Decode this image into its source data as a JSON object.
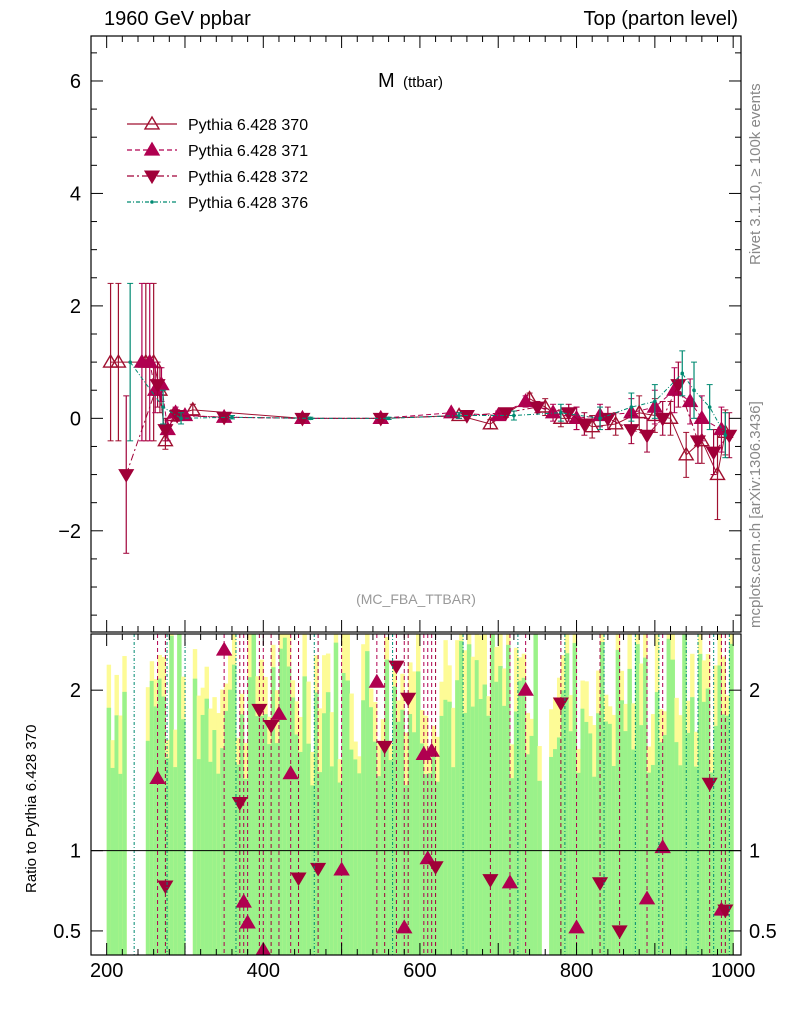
{
  "header": {
    "left": "1960 GeV ppbar",
    "right": "Top (parton level)"
  },
  "side_labels": {
    "rivet": "Rivet 3.1.10, ≥ 100k events",
    "mcplots": "mcplots.cern.ch [arXiv:1306.3436]"
  },
  "plot_title_main": "M",
  "plot_title_sub": "(ttbar)",
  "analysis_tag": "(MC_FBA_TTBAR)",
  "ratio_ylabel": "Ratio to Pythia 6.428 370",
  "colors": {
    "s370": "#a01030",
    "s371": "#b00050",
    "s372": "#a00038",
    "s376": "#008a72",
    "band_green": "#9af28a",
    "band_yellow": "#fdfb96",
    "gray_text": "#999999"
  },
  "legend": [
    {
      "label": "Pythia 6.428 370",
      "marker": "triangle-open",
      "line": "solid"
    },
    {
      "label": "Pythia 6.428 371",
      "marker": "triangle-up",
      "line": "dashed"
    },
    {
      "label": "Pythia 6.428 372",
      "marker": "triangle-down",
      "line": "dashdot"
    },
    {
      "label": "Pythia 6.428 376",
      "marker": "dot",
      "line": "dashdot-fine"
    }
  ],
  "chart_data": [
    {
      "type": "scatter",
      "title": "M (ttbar)",
      "xlim": [
        180,
        1010
      ],
      "ylim": [
        -3.8,
        6.8
      ],
      "yticks": [
        -2,
        0,
        2,
        4,
        6
      ],
      "ytick_labels": [
        "−2",
        "0",
        "2",
        "4",
        "6"
      ],
      "xticks": [
        200,
        400,
        600,
        800,
        1000
      ],
      "xtick_labels": [
        "200",
        "400",
        "600",
        "800",
        "1000"
      ],
      "grid": false,
      "legend_position": "top-left",
      "series": [
        {
          "name": "Pythia 6.428 370",
          "x": [
            205,
            215,
            250,
            260,
            268,
            275,
            285,
            310,
            450,
            550,
            650,
            690,
            740,
            760,
            780,
            800,
            820,
            850,
            880,
            900,
            920,
            940,
            960,
            980,
            990
          ],
          "y": [
            1.0,
            1.0,
            1.0,
            1.0,
            0.5,
            -0.4,
            0.05,
            0.15,
            0.0,
            0.0,
            0.05,
            -0.1,
            0.35,
            0.2,
            0.0,
            0.0,
            -0.15,
            -0.1,
            0.1,
            0.05,
            0.0,
            -0.65,
            -0.4,
            -1.0,
            -0.25
          ],
          "yerr": [
            1.4,
            1.4,
            1.4,
            1.4,
            0.4,
            0.15,
            0.1,
            0.1,
            0.02,
            0.02,
            0.05,
            0.08,
            0.1,
            0.15,
            0.15,
            0.2,
            0.2,
            0.2,
            0.3,
            0.3,
            0.3,
            0.4,
            0.4,
            0.8,
            0.4
          ]
        },
        {
          "name": "Pythia 6.428 371",
          "x": [
            245,
            255,
            262,
            270,
            278,
            288,
            300,
            350,
            450,
            550,
            640,
            700,
            735,
            770,
            800,
            830,
            870,
            900,
            925,
            945,
            960,
            985
          ],
          "y": [
            1.0,
            1.0,
            0.5,
            0.6,
            -0.2,
            0.1,
            0.05,
            0.02,
            0.0,
            0.0,
            0.1,
            0.05,
            0.3,
            0.1,
            0.0,
            0.05,
            0.1,
            0.2,
            0.5,
            0.3,
            0.0,
            -0.2
          ],
          "yerr": [
            1.4,
            1.4,
            0.4,
            0.3,
            0.2,
            0.1,
            0.08,
            0.03,
            0.02,
            0.02,
            0.05,
            0.08,
            0.1,
            0.15,
            0.2,
            0.2,
            0.25,
            0.3,
            0.4,
            0.4,
            0.4,
            0.4
          ]
        },
        {
          "name": "Pythia 6.428 372",
          "x": [
            225,
            265,
            275,
            290,
            350,
            450,
            550,
            660,
            710,
            750,
            790,
            810,
            840,
            870,
            890,
            910,
            930,
            955,
            975,
            995
          ],
          "y": [
            -1.0,
            0.6,
            -0.2,
            0.05,
            0.02,
            0.0,
            0.0,
            0.05,
            0.1,
            0.2,
            0.1,
            -0.1,
            0.0,
            -0.2,
            -0.3,
            0.0,
            0.6,
            -0.4,
            -0.6,
            -0.3
          ],
          "yerr": [
            1.4,
            0.4,
            0.2,
            0.1,
            0.03,
            0.02,
            0.02,
            0.05,
            0.08,
            0.1,
            0.15,
            0.2,
            0.2,
            0.25,
            0.3,
            0.3,
            0.4,
            0.4,
            0.4,
            0.4
          ]
        },
        {
          "name": "Pythia 6.428 376",
          "x": [
            230,
            272,
            295,
            360,
            460,
            560,
            650,
            720,
            780,
            830,
            870,
            900,
            935,
            950,
            970,
            990
          ],
          "y": [
            1.0,
            0.2,
            0.0,
            0.02,
            0.0,
            0.0,
            0.05,
            0.05,
            0.1,
            0.0,
            0.2,
            0.3,
            0.8,
            0.5,
            0.2,
            -0.3
          ],
          "yerr": [
            1.4,
            0.3,
            0.1,
            0.03,
            0.02,
            0.02,
            0.05,
            0.08,
            0.15,
            0.2,
            0.25,
            0.3,
            0.4,
            0.5,
            0.4,
            0.4
          ]
        }
      ]
    },
    {
      "type": "scatter",
      "title": "ratio",
      "ylabel": "Ratio to Pythia 6.428 370",
      "xlim": [
        180,
        1010
      ],
      "ylim": [
        0.35,
        2.35
      ],
      "yticks": [
        0.5,
        1,
        2
      ],
      "ytick_labels": [
        "0.5",
        "1",
        "2"
      ],
      "xticks": [
        200,
        400,
        600,
        800,
        1000
      ],
      "xtick_labels": [
        "200",
        "400",
        "600",
        "800",
        "1000"
      ],
      "reference_line": 1,
      "series": [
        {
          "name": "Pythia 6.428 371",
          "x": [
            265,
            350,
            375,
            380,
            400,
            420,
            435,
            500,
            545,
            580,
            605,
            610,
            615,
            715,
            735,
            800,
            890,
            910,
            985
          ],
          "y": [
            1.45,
            2.25,
            0.68,
            0.55,
            0.38,
            1.85,
            1.48,
            0.88,
            2.05,
            0.52,
            1.6,
            0.95,
            1.62,
            0.8,
            2.0,
            0.52,
            0.7,
            1.02,
            0.63
          ]
        },
        {
          "name": "Pythia 6.428 372",
          "x": [
            275,
            370,
            395,
            410,
            445,
            470,
            555,
            570,
            585,
            620,
            690,
            780,
            830,
            855,
            970,
            990
          ],
          "y": [
            0.78,
            1.3,
            1.88,
            1.78,
            0.83,
            0.89,
            1.65,
            2.15,
            1.95,
            0.9,
            0.82,
            1.92,
            0.8,
            0.5,
            1.42,
            0.63
          ]
        }
      ]
    }
  ]
}
